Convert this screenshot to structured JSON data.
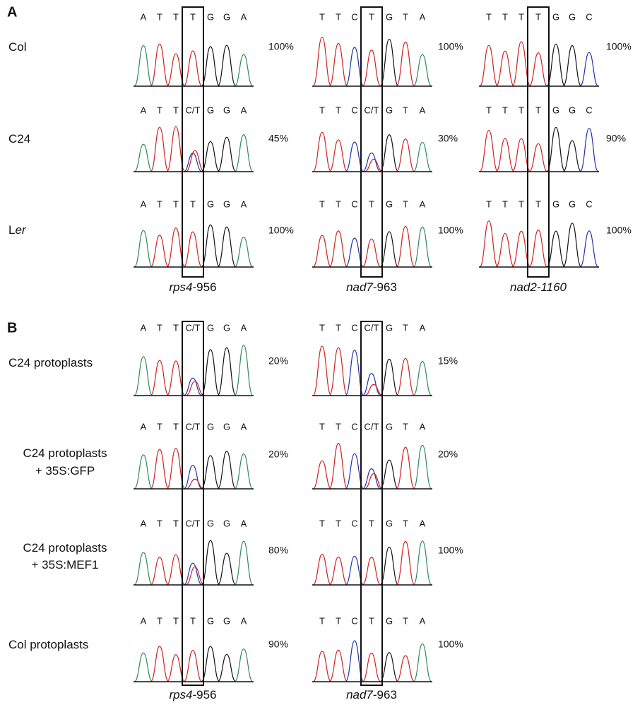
{
  "panels": [
    {
      "label": "A",
      "columns": [
        [
          {
            "text": "rps4",
            "italic": true
          },
          {
            "text": "-956"
          }
        ],
        [
          {
            "text": "nad7",
            "italic": true
          },
          {
            "text": "-963"
          }
        ],
        [
          {
            "text": "nad2-1160",
            "italic": true
          }
        ]
      ],
      "rows": [
        {
          "lines": [
            [
              {
                "text": "Col"
              }
            ]
          ],
          "cells": [
            {
              "bases": [
                "A",
                "T",
                "T",
                "T",
                "G",
                "G",
                "A"
              ],
              "percent": "100%"
            },
            {
              "bases": [
                "T",
                "T",
                "C",
                "T",
                "G",
                "T",
                "A"
              ],
              "percent": "100%"
            },
            {
              "bases": [
                "T",
                "T",
                "T",
                "T",
                "G",
                "G",
                "C"
              ],
              "percent": "100%"
            }
          ]
        },
        {
          "lines": [
            [
              {
                "text": "C24"
              }
            ]
          ],
          "cells": [
            {
              "bases": [
                "A",
                "T",
                "T",
                "C/T",
                "G",
                "G",
                "A"
              ],
              "percent": "45%"
            },
            {
              "bases": [
                "T",
                "T",
                "C",
                "C/T",
                "G",
                "T",
                "A"
              ],
              "percent": "30%"
            },
            {
              "bases": [
                "T",
                "T",
                "T",
                "T",
                "G",
                "G",
                "C"
              ],
              "percent": "90%"
            }
          ]
        },
        {
          "lines": [
            [
              {
                "text": "L"
              },
              {
                "text": "er",
                "italic": true
              }
            ]
          ],
          "cells": [
            {
              "bases": [
                "A",
                "T",
                "T",
                "T",
                "G",
                "G",
                "A"
              ],
              "percent": "100%"
            },
            {
              "bases": [
                "T",
                "T",
                "C",
                "T",
                "G",
                "T",
                "A"
              ],
              "percent": "100%"
            },
            {
              "bases": [
                "T",
                "T",
                "T",
                "T",
                "G",
                "G",
                "C"
              ],
              "percent": "100%"
            }
          ]
        }
      ]
    },
    {
      "label": "B",
      "columns": [
        [
          {
            "text": "rps4",
            "italic": true
          },
          {
            "text": "-956"
          }
        ],
        [
          {
            "text": "nad7",
            "italic": true
          },
          {
            "text": "-963"
          }
        ]
      ],
      "rows": [
        {
          "lines": [
            [
              {
                "text": "C24 protoplasts"
              }
            ]
          ],
          "cells": [
            {
              "bases": [
                "A",
                "T",
                "T",
                "C/T",
                "G",
                "G",
                "A"
              ],
              "percent": "20%"
            },
            {
              "bases": [
                "T",
                "T",
                "C",
                "C/T",
                "G",
                "T",
                "A"
              ],
              "percent": "15%"
            }
          ]
        },
        {
          "lines": [
            [
              {
                "text": "C24 protoplasts"
              }
            ],
            [
              {
                "text": "+ 35S:GFP"
              }
            ]
          ],
          "cells": [
            {
              "bases": [
                "A",
                "T",
                "T",
                "C/T",
                "G",
                "G",
                "A"
              ],
              "percent": "20%"
            },
            {
              "bases": [
                "T",
                "T",
                "C",
                "C/T",
                "G",
                "T",
                "A"
              ],
              "percent": "20%"
            }
          ]
        },
        {
          "lines": [
            [
              {
                "text": "C24 protoplasts"
              }
            ],
            [
              {
                "text": "+ 35S:MEF1"
              }
            ]
          ],
          "cells": [
            {
              "bases": [
                "A",
                "T",
                "T",
                "C/T",
                "G",
                "G",
                "A"
              ],
              "percent": "80%"
            },
            {
              "bases": [
                "T",
                "T",
                "C",
                "T",
                "G",
                "T",
                "A"
              ],
              "percent": "100%"
            }
          ]
        },
        {
          "lines": [
            [
              {
                "text": "Col protoplasts"
              }
            ]
          ],
          "cells": [
            {
              "bases": [
                "A",
                "T",
                "T",
                "T",
                "G",
                "G",
                "A"
              ],
              "percent": "90%"
            },
            {
              "bases": [
                "T",
                "T",
                "C",
                "T",
                "G",
                "T",
                "A"
              ],
              "percent": "100%"
            }
          ]
        }
      ]
    }
  ]
}
